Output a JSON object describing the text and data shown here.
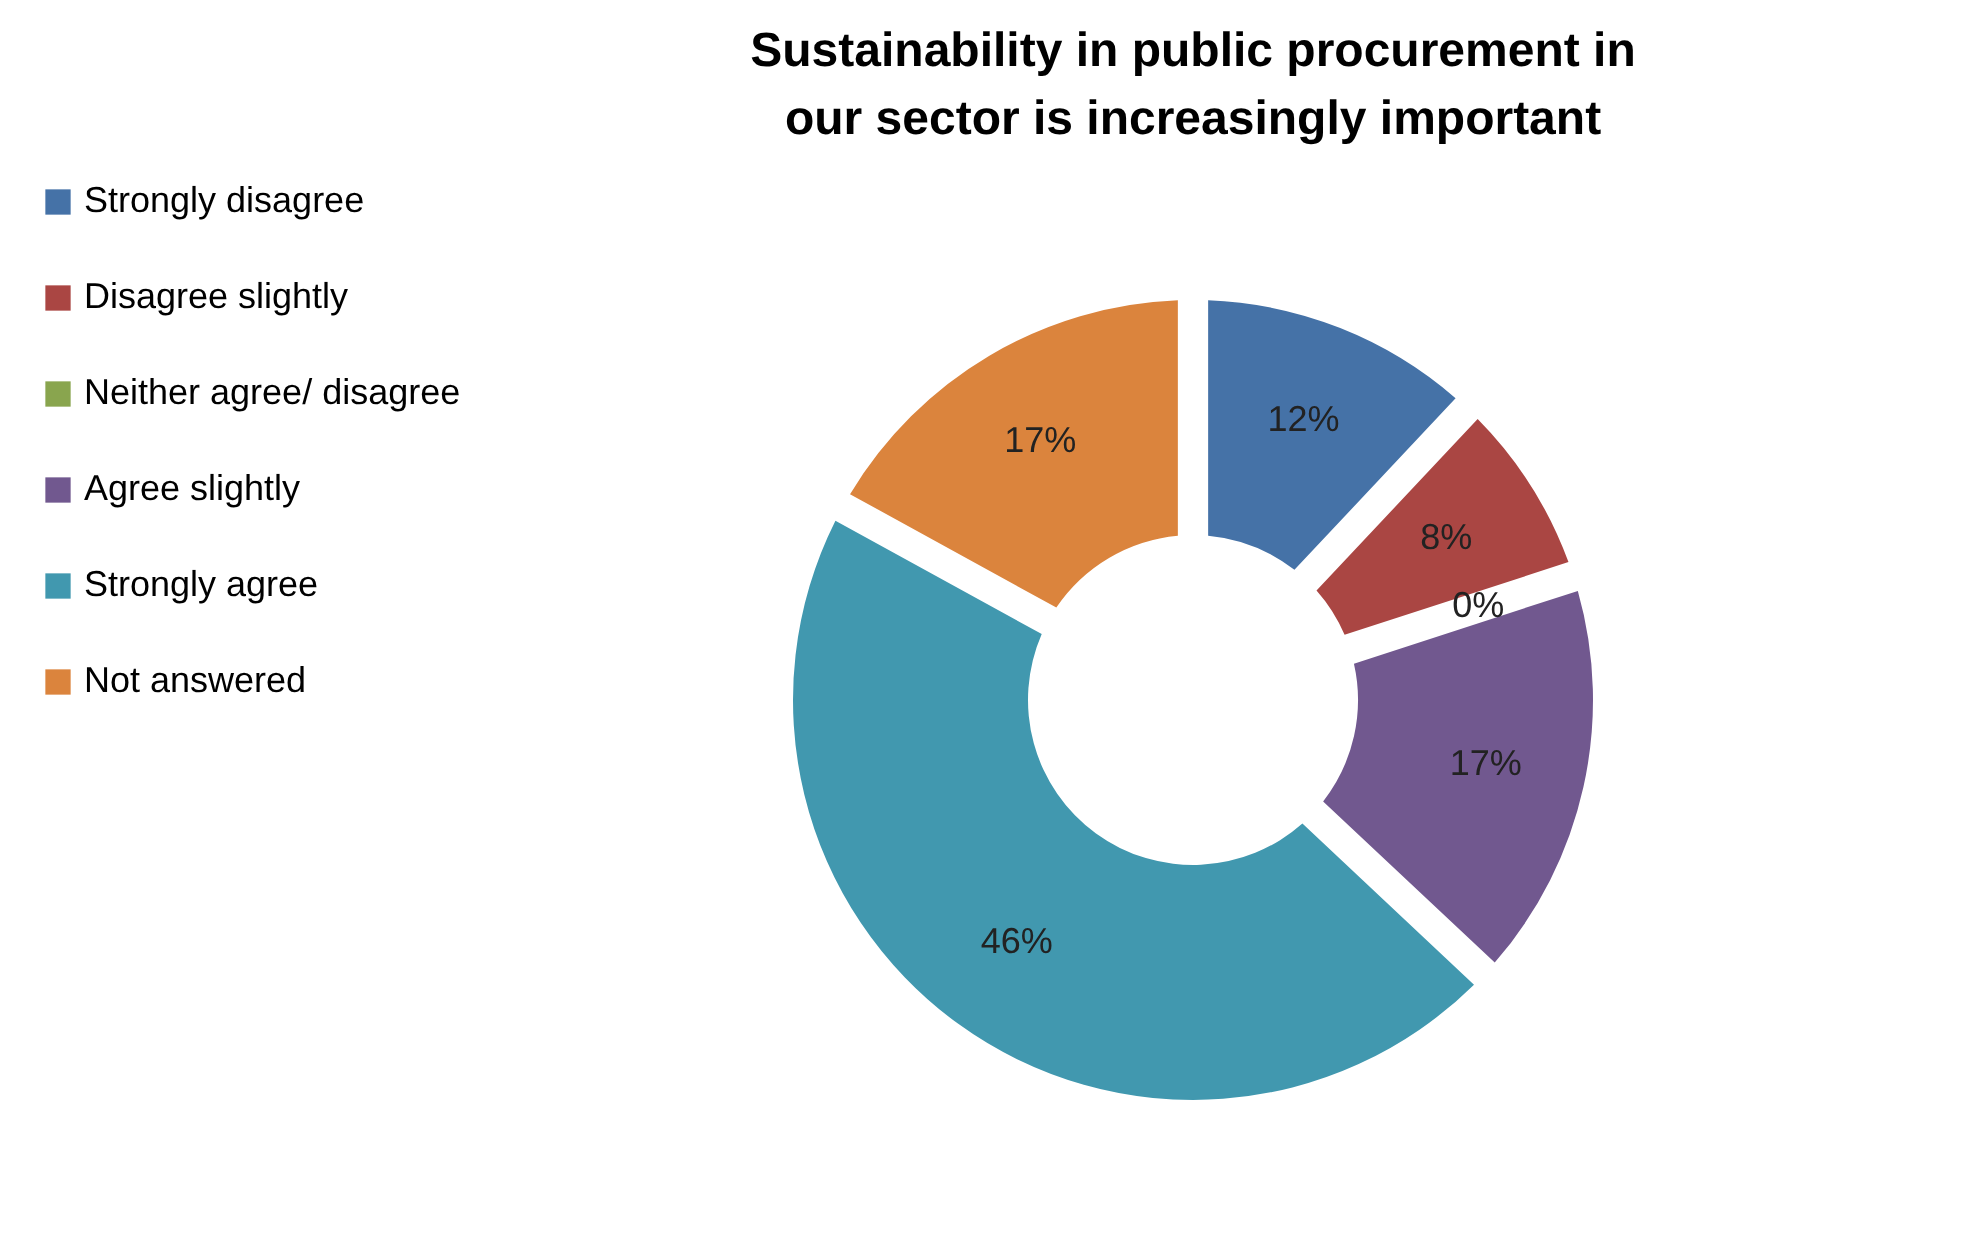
{
  "chart_data": {
    "type": "donut",
    "title": "Sustainability in public procurement in our sector is increasingly important",
    "categories": [
      "Strongly disagree",
      "Disagree slightly",
      "Neither agree/ disagree",
      "Agree slightly",
      "Strongly agree",
      "Not answered"
    ],
    "values": [
      12,
      8,
      0,
      17,
      46,
      17
    ],
    "colors": [
      "#4572a7",
      "#aa4643",
      "#89a54e",
      "#71588f",
      "#4198af",
      "#db843d"
    ],
    "value_labels": [
      "12%",
      "8%",
      "0%",
      "17%",
      "46%",
      "17%"
    ],
    "legend": "left"
  }
}
